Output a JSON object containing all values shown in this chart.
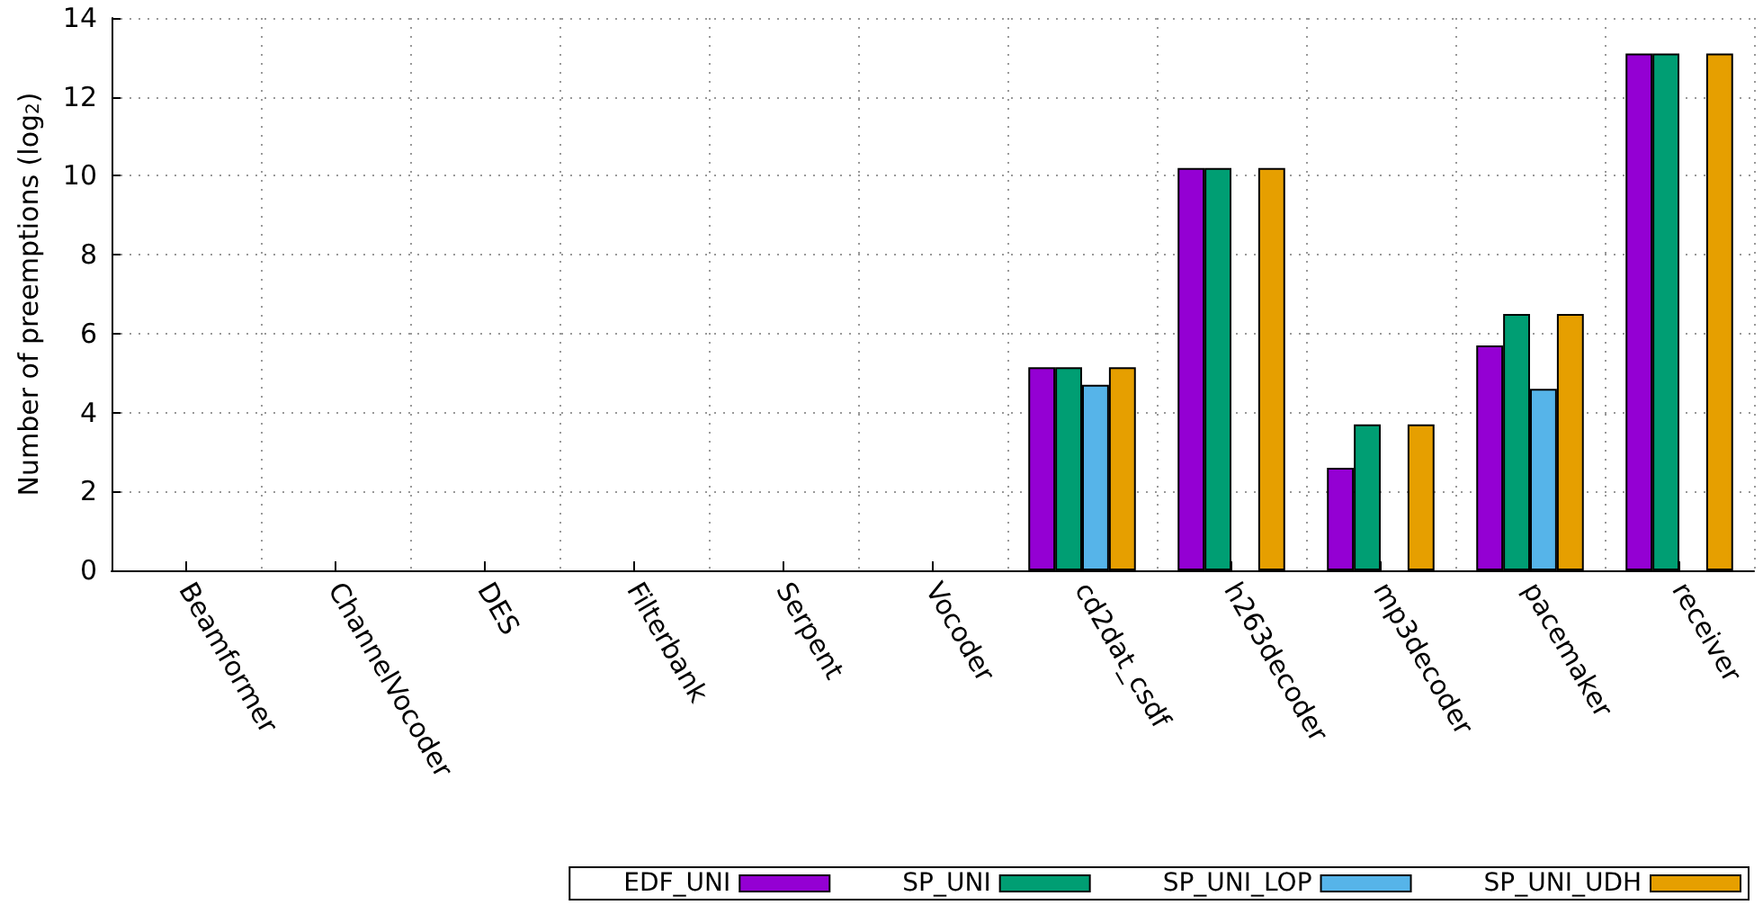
{
  "chart_data": {
    "type": "bar",
    "ylabel": "Number of preemptions (log$_{2}$)",
    "categories": [
      "Beamformer",
      "ChannelVocoder",
      "DES",
      "Filterbank",
      "Serpent",
      "Vocoder",
      "cd2dat_csdf",
      "h263decoder",
      "mp3decoder",
      "pacemaker",
      "receiver"
    ],
    "series": [
      {
        "name": "EDF_UNI",
        "color": "#9400d3",
        "values": [
          0,
          0,
          0,
          0,
          0,
          0,
          5.15,
          10.2,
          2.6,
          5.7,
          13.1
        ]
      },
      {
        "name": "SP_UNI",
        "color": "#009e73",
        "values": [
          0,
          0,
          0,
          0,
          0,
          0,
          5.15,
          10.2,
          3.7,
          6.5,
          13.1
        ]
      },
      {
        "name": "SP_UNI_LOP",
        "color": "#56b4e9",
        "values": [
          0,
          0,
          0,
          0,
          0,
          0,
          4.7,
          0,
          0,
          4.6,
          0
        ]
      },
      {
        "name": "SP_UNI_UDH",
        "color": "#e69f00",
        "values": [
          0,
          0,
          0,
          0,
          0,
          0,
          5.15,
          10.2,
          3.7,
          6.5,
          13.1
        ]
      }
    ],
    "ylim": [
      0,
      14
    ],
    "yticks": [
      0,
      2,
      4,
      6,
      8,
      10,
      12,
      14
    ],
    "grid": true,
    "legend": "bottom"
  }
}
